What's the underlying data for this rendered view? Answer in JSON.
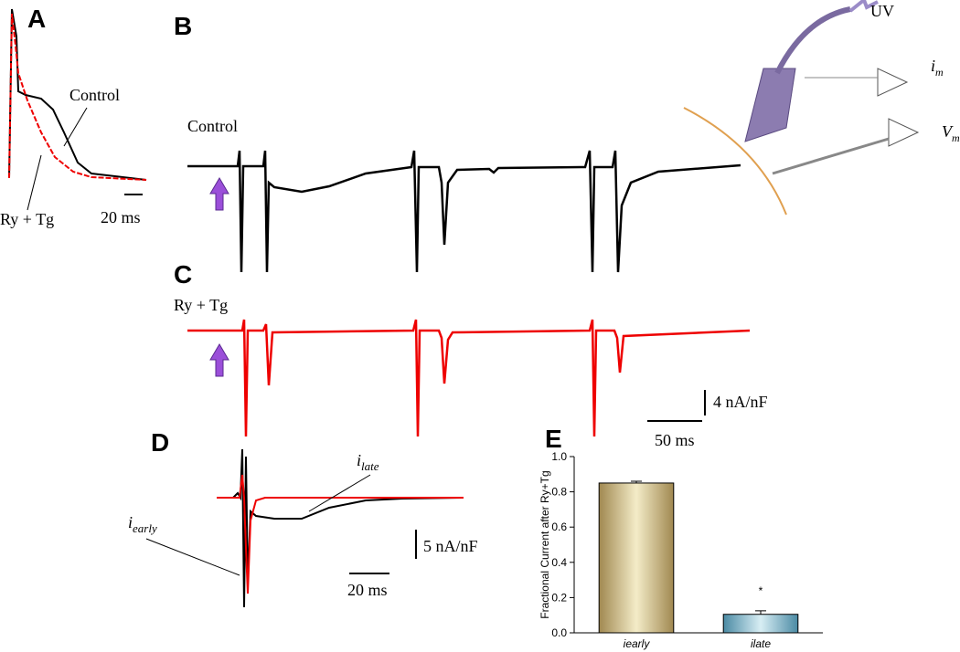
{
  "panels": {
    "A": "A",
    "B": "B",
    "C": "C",
    "D": "D",
    "E": "E"
  },
  "panel_a": {
    "control": "Control",
    "ry_tg": "Ry + Tg",
    "scale": "20 ms"
  },
  "panel_b": {
    "control": "Control",
    "uv": "UV",
    "im": {
      "base": "i",
      "sub": "m"
    },
    "vm": {
      "base": "V",
      "sub": "m"
    }
  },
  "panel_c": {
    "ry_tg": "Ry + Tg",
    "scale_y": "4 nA/nF",
    "scale_x": "50 ms"
  },
  "panel_d": {
    "ilate": {
      "base": "i",
      "sub": "late"
    },
    "iearly": {
      "base": "i",
      "sub": "early"
    },
    "scale_y": "5 nA/nF",
    "scale_x": "20 ms"
  },
  "chart_data": {
    "type": "bar",
    "y_label": "Fractional Current after Ry+Tg",
    "categories": [
      "iearly",
      "ilate"
    ],
    "values": [
      0.85,
      0.105
    ],
    "errors": [
      0.01,
      0.02
    ],
    "colors": [
      "#c8b478",
      "#7fb4c8"
    ],
    "annotation": "*",
    "ylim": [
      0,
      1.0
    ],
    "yticks": [
      {
        "value": 0,
        "label": "0.0"
      },
      {
        "value": 0.2,
        "label": "0.2"
      },
      {
        "value": 0.4,
        "label": "0.4"
      },
      {
        "value": 0.6,
        "label": "0.6"
      },
      {
        "value": 0.8,
        "label": "0.8"
      },
      {
        "value": 1.0,
        "label": "1.0"
      }
    ]
  }
}
